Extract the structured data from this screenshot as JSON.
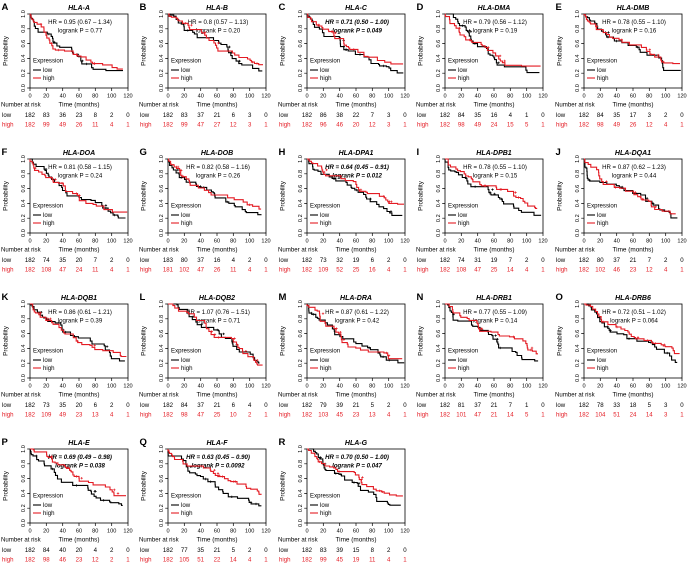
{
  "figure": {
    "shared": {
      "ylabel": "Probability",
      "xlabel": "Time (months)",
      "risk_header": "Number at risk",
      "legend_title": "Expression",
      "legend_low": "low",
      "legend_high": "high",
      "y_ticks": [
        "0.0",
        "0.2",
        "0.4",
        "0.6",
        "0.8",
        "1.0"
      ],
      "x_ticks": [
        "0",
        "20",
        "40",
        "60",
        "80",
        "100",
        "120"
      ],
      "color_low": "#000000",
      "color_high": "#e31b23"
    }
  },
  "chart_data": {
    "type": "line",
    "subtype": "kaplan-meier-survival",
    "x": [
      0,
      20,
      40,
      60,
      80,
      100,
      120
    ],
    "xlabel": "Time (months)",
    "ylabel": "Probability",
    "ylim": [
      0.0,
      1.0
    ],
    "groups": [
      "low",
      "high"
    ],
    "legend_position": "lower-left-inside",
    "panels": [
      {
        "letter": "A",
        "gene": "HLA-A",
        "hr": 0.95,
        "hr_text": "HR = 0.95 (0.67 – 1.34)",
        "logrank_text": "logrank P = 0.77",
        "significant": false,
        "risk_low": [
          182,
          83,
          36,
          23,
          8,
          2,
          0
        ],
        "risk_high": [
          182,
          99,
          49,
          26,
          11,
          4,
          1
        ]
      },
      {
        "letter": "B",
        "gene": "HLA-B",
        "hr": 0.8,
        "hr_text": "HR = 0.8 (0.57 – 1.13)",
        "logrank_text": "logrank P = 0.20",
        "significant": false,
        "risk_low": [
          182,
          83,
          37,
          21,
          6,
          3,
          0
        ],
        "risk_high": [
          182,
          99,
          47,
          27,
          12,
          3,
          1
        ]
      },
      {
        "letter": "C",
        "gene": "HLA-C",
        "hr": 0.71,
        "hr_text": "HR = 0.71 (0.50 – 1.00)",
        "logrank_text": "logrank P = 0.049",
        "significant": true,
        "risk_low": [
          182,
          86,
          38,
          22,
          7,
          3,
          0
        ],
        "risk_high": [
          182,
          96,
          46,
          20,
          12,
          3,
          1
        ]
      },
      {
        "letter": "D",
        "gene": "HLA-DMA",
        "hr": 0.79,
        "hr_text": "HR = 0.79 (0.56 – 1.12)",
        "logrank_text": "logrank P = 0.19",
        "significant": false,
        "risk_low": [
          182,
          84,
          35,
          16,
          4,
          1,
          0
        ],
        "risk_high": [
          182,
          98,
          49,
          24,
          15,
          5,
          1
        ]
      },
      {
        "letter": "E",
        "gene": "HLA-DMB",
        "hr": 0.78,
        "hr_text": "HR = 0.78 (0.55 – 1.10)",
        "logrank_text": "logrank P = 0.16",
        "significant": false,
        "risk_low": [
          182,
          84,
          35,
          17,
          3,
          2,
          0
        ],
        "risk_high": [
          182,
          98,
          49,
          26,
          12,
          4,
          1
        ]
      },
      {
        "letter": "F",
        "gene": "HLA-DOA",
        "hr": 0.81,
        "hr_text": "HR = 0.81 (0.58 – 1.15)",
        "logrank_text": "logrank P = 0.24",
        "significant": false,
        "risk_low": [
          182,
          74,
          35,
          20,
          7,
          2,
          0
        ],
        "risk_high": [
          182,
          108,
          47,
          24,
          11,
          4,
          1
        ]
      },
      {
        "letter": "G",
        "gene": "HLA-DOB",
        "hr": 0.82,
        "hr_text": "HR = 0.82 (0.58 – 1.16)",
        "logrank_text": "logrank P = 0.26",
        "significant": false,
        "risk_low": [
          183,
          80,
          37,
          16,
          4,
          2,
          0
        ],
        "risk_high": [
          181,
          102,
          47,
          26,
          11,
          4,
          1
        ]
      },
      {
        "letter": "H",
        "gene": "HLA-DPA1",
        "hr": 0.64,
        "hr_text": "HR = 0.64 (0.45 – 0.91)",
        "logrank_text": "logrank P = 0.012",
        "significant": true,
        "risk_low": [
          182,
          73,
          32,
          19,
          6,
          2,
          0
        ],
        "risk_high": [
          182,
          109,
          52,
          25,
          16,
          4,
          1
        ]
      },
      {
        "letter": "I",
        "gene": "HLA-DPB1",
        "hr": 0.78,
        "hr_text": "HR = 0.78 (0.55 – 1.10)",
        "logrank_text": "logrank P = 0.15",
        "significant": false,
        "risk_low": [
          182,
          74,
          31,
          19,
          7,
          2,
          0
        ],
        "risk_high": [
          182,
          108,
          47,
          25,
          14,
          4,
          1
        ]
      },
      {
        "letter": "J",
        "gene": "HLA-DQA1",
        "hr": 0.87,
        "hr_text": "HR = 0.87 (0.62 – 1.23)",
        "logrank_text": "logrank P = 0.44",
        "significant": false,
        "risk_low": [
          182,
          80,
          37,
          21,
          7,
          2,
          0
        ],
        "risk_high": [
          182,
          102,
          46,
          23,
          12,
          4,
          1
        ]
      },
      {
        "letter": "K",
        "gene": "HLA-DQB1",
        "hr": 0.86,
        "hr_text": "HR = 0.86 (0.61 – 1.21)",
        "logrank_text": "logrank P = 0.39",
        "significant": false,
        "risk_low": [
          182,
          73,
          35,
          20,
          6,
          2,
          0
        ],
        "risk_high": [
          182,
          109,
          49,
          23,
          13,
          4,
          1
        ]
      },
      {
        "letter": "L",
        "gene": "HLA-DQB2",
        "hr": 1.07,
        "hr_text": "HR = 1.07 (0.76 – 1.51)",
        "logrank_text": "logrank P = 0.71",
        "significant": false,
        "risk_low": [
          182,
          84,
          37,
          21,
          6,
          4,
          0
        ],
        "risk_high": [
          182,
          98,
          47,
          25,
          10,
          2,
          1
        ]
      },
      {
        "letter": "M",
        "gene": "HLA-DRA",
        "hr": 0.87,
        "hr_text": "HR = 0.87 (0.61 – 1.22)",
        "logrank_text": "logrank P = 0.42",
        "significant": false,
        "risk_low": [
          182,
          79,
          39,
          21,
          5,
          2,
          0
        ],
        "risk_high": [
          182,
          103,
          45,
          23,
          13,
          4,
          1
        ]
      },
      {
        "letter": "N",
        "gene": "HLA-DRB1",
        "hr": 0.77,
        "hr_text": "HR = 0.77 (0.55 – 1.09)",
        "logrank_text": "logrank P = 0.14",
        "significant": false,
        "risk_low": [
          182,
          81,
          37,
          21,
          7,
          1,
          0
        ],
        "risk_high": [
          182,
          101,
          47,
          21,
          14,
          5,
          1
        ]
      },
      {
        "letter": "O",
        "gene": "HLA-DRB6",
        "hr": 0.72,
        "hr_text": "HR = 0.72 (0.51 – 1.02)",
        "logrank_text": "logrank P = 0.064",
        "significant": false,
        "risk_low": [
          182,
          78,
          33,
          18,
          5,
          3,
          0
        ],
        "risk_high": [
          182,
          104,
          51,
          24,
          14,
          3,
          1
        ]
      },
      {
        "letter": "P",
        "gene": "HLA-E",
        "hr": 0.69,
        "hr_text": "HR = 0.69 (0.49 – 0.98)",
        "logrank_text": "logrank P = 0.038",
        "significant": true,
        "risk_low": [
          182,
          84,
          40,
          20,
          4,
          2,
          0
        ],
        "risk_high": [
          182,
          98,
          46,
          23,
          12,
          2,
          1
        ]
      },
      {
        "letter": "Q",
        "gene": "HLA-F",
        "hr": 0.63,
        "hr_text": "HR = 0.63 (0.45 – 0.90)",
        "logrank_text": "logrank P = 0.0092",
        "significant": true,
        "risk_low": [
          182,
          77,
          35,
          21,
          5,
          2,
          0
        ],
        "risk_high": [
          182,
          105,
          51,
          22,
          14,
          4,
          1
        ]
      },
      {
        "letter": "R",
        "gene": "HLA-G",
        "hr": 0.7,
        "hr_text": "HR = 0.70 (0.50 – 1.00)",
        "logrank_text": "logrank P = 0.047",
        "significant": true,
        "risk_low": [
          182,
          83,
          39,
          15,
          8,
          2,
          0
        ],
        "risk_high": [
          182,
          99,
          45,
          19,
          11,
          4,
          1
        ]
      }
    ]
  }
}
